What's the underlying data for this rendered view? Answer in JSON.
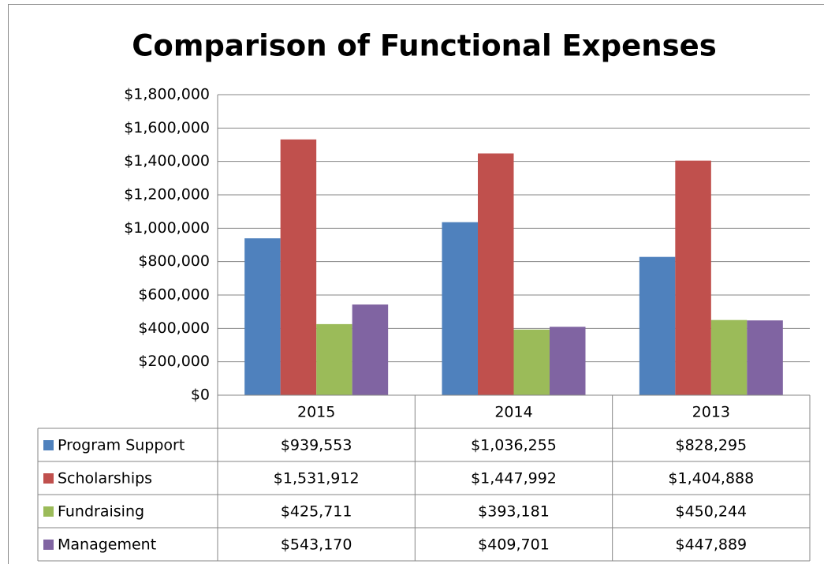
{
  "chart_data": {
    "type": "bar",
    "title": "Comparison of Functional Expenses",
    "categories": [
      "2015",
      "2014",
      "2013"
    ],
    "series": [
      {
        "name": "Program Support",
        "color": "#4f81bd",
        "values": [
          939553,
          1036255,
          828295
        ],
        "value_labels": [
          "$939,553",
          "$1,036,255",
          "$828,295"
        ]
      },
      {
        "name": "Scholarships",
        "color": "#c0504d",
        "values": [
          1531912,
          1447992,
          1404888
        ],
        "value_labels": [
          "$1,531,912",
          "$1,447,992",
          "$1,404,888"
        ]
      },
      {
        "name": "Fundraising",
        "color": "#9bbb59",
        "values": [
          425711,
          393181,
          450244
        ],
        "value_labels": [
          "$425,711",
          "$393,181",
          "$450,244"
        ]
      },
      {
        "name": "Management",
        "color": "#8064a2",
        "values": [
          543170,
          409701,
          447889
        ],
        "value_labels": [
          "$543,170",
          "$409,701",
          "$447,889"
        ]
      }
    ],
    "ylim": [
      0,
      1800000
    ],
    "yticks": [
      {
        "value": 0,
        "label": "$0"
      },
      {
        "value": 200000,
        "label": "$200,000"
      },
      {
        "value": 400000,
        "label": "$400,000"
      },
      {
        "value": 600000,
        "label": "$600,000"
      },
      {
        "value": 800000,
        "label": "$800,000"
      },
      {
        "value": 1000000,
        "label": "$1,000,000"
      },
      {
        "value": 1200000,
        "label": "$1,200,000"
      },
      {
        "value": 1400000,
        "label": "$1,400,000"
      },
      {
        "value": 1600000,
        "label": "$1,600,000"
      },
      {
        "value": 1800000,
        "label": "$1,800,000"
      }
    ],
    "grid": true
  }
}
